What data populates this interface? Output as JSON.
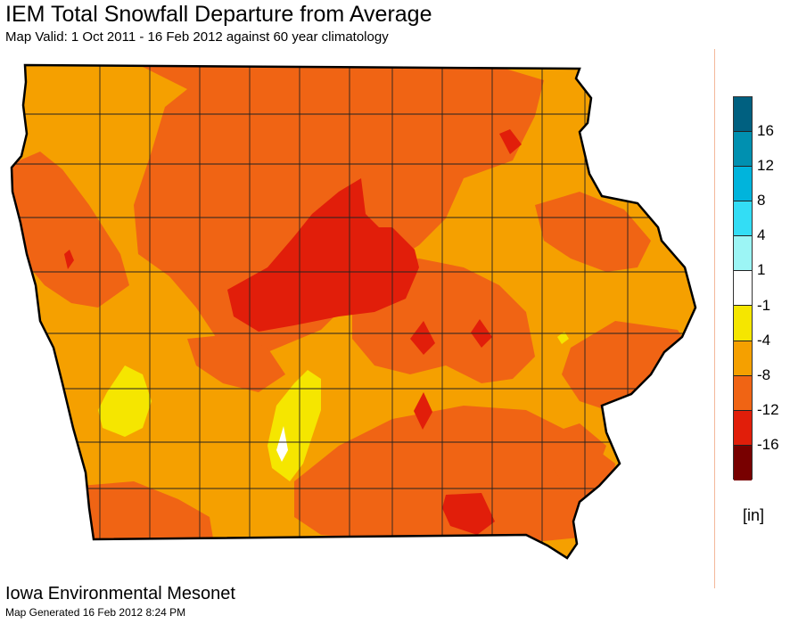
{
  "title": "IEM Total Snowfall Departure from Average",
  "subtitle": "Map Valid: 1 Oct 2011 - 16 Feb 2012 against 60 year climatology",
  "legend": {
    "unit": "[in]",
    "tick_labels": [
      "16",
      "12",
      "8",
      "4",
      "1",
      "-1",
      "-4",
      "-8",
      "-12",
      "-16"
    ],
    "bins": [
      {
        "range": "> 16",
        "color": "#006080"
      },
      {
        "range": "12 to 16",
        "color": "#0090b0"
      },
      {
        "range": "8 to 12",
        "color": "#00b4dc"
      },
      {
        "range": "4 to 8",
        "color": "#33ddf5"
      },
      {
        "range": "1 to 4",
        "color": "#9cf5f5"
      },
      {
        "range": "-1 to 1",
        "color": "#ffffff"
      },
      {
        "range": "-4 to -1",
        "color": "#f5e600"
      },
      {
        "range": "-8 to -4",
        "color": "#f5a000"
      },
      {
        "range": "-12 to -8",
        "color": "#f06414"
      },
      {
        "range": "-16 to -12",
        "color": "#e11e0a"
      },
      {
        "range": "< -16",
        "color": "#780000"
      }
    ]
  },
  "footer": {
    "organization": "Iowa Environmental Mesonet",
    "generated": "Map Generated 16 Feb 2012 8:24 PM"
  },
  "map_colors": {
    "base": "#f5a000",
    "moderate": "#f06414",
    "severe": "#e11e0a",
    "light": "#f5e600",
    "near_normal": "#ffffff",
    "county_border": "#222222",
    "state_border": "#000000"
  }
}
